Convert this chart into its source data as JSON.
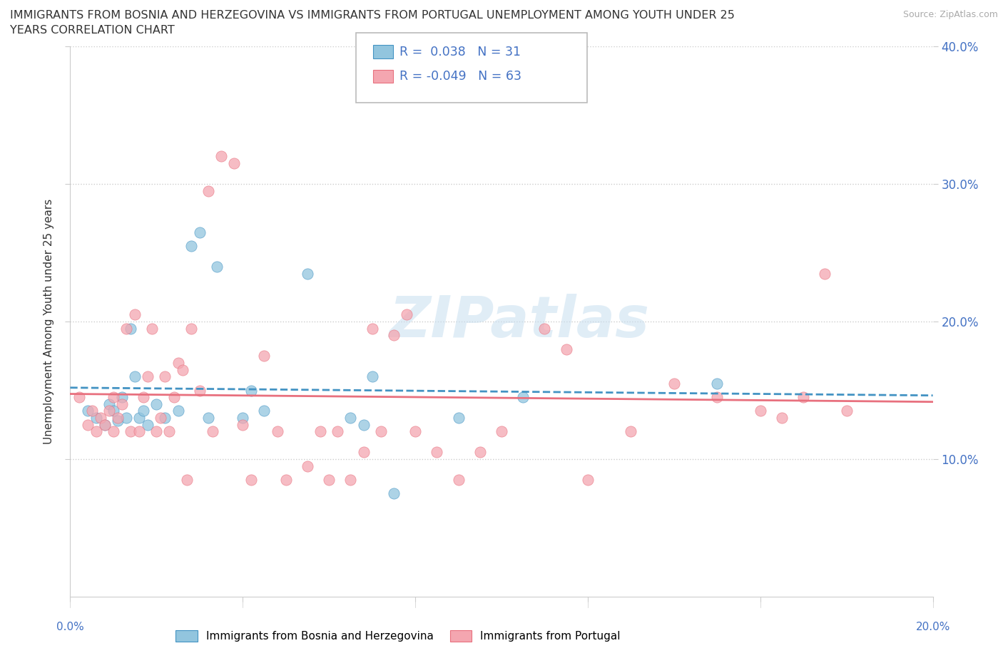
{
  "title_line1": "IMMIGRANTS FROM BOSNIA AND HERZEGOVINA VS IMMIGRANTS FROM PORTUGAL UNEMPLOYMENT AMONG YOUTH UNDER 25",
  "title_line2": "YEARS CORRELATION CHART",
  "source": "Source: ZipAtlas.com",
  "ylabel": "Unemployment Among Youth under 25 years",
  "watermark_text": "ZIPatlas",
  "bosnia_color": "#92c5de",
  "portugal_color": "#f4a6b0",
  "bosnia_line_color": "#4393c3",
  "portugal_line_color": "#e8707e",
  "bosnia_R": 0.038,
  "bosnia_N": 31,
  "portugal_R": -0.049,
  "portugal_N": 63,
  "bosnia_scatter": [
    [
      0.4,
      13.5
    ],
    [
      0.6,
      13.0
    ],
    [
      0.8,
      12.5
    ],
    [
      0.9,
      14.0
    ],
    [
      1.0,
      13.5
    ],
    [
      1.1,
      12.8
    ],
    [
      1.2,
      14.5
    ],
    [
      1.3,
      13.0
    ],
    [
      1.4,
      19.5
    ],
    [
      1.5,
      16.0
    ],
    [
      1.6,
      13.0
    ],
    [
      1.7,
      13.5
    ],
    [
      1.8,
      12.5
    ],
    [
      2.0,
      14.0
    ],
    [
      2.2,
      13.0
    ],
    [
      2.5,
      13.5
    ],
    [
      2.8,
      25.5
    ],
    [
      3.0,
      26.5
    ],
    [
      3.2,
      13.0
    ],
    [
      3.4,
      24.0
    ],
    [
      4.2,
      15.0
    ],
    [
      4.5,
      13.5
    ],
    [
      5.5,
      23.5
    ],
    [
      6.5,
      13.0
    ],
    [
      6.8,
      12.5
    ],
    [
      7.0,
      16.0
    ],
    [
      7.5,
      7.5
    ],
    [
      9.0,
      13.0
    ],
    [
      10.5,
      14.5
    ],
    [
      15.0,
      15.5
    ],
    [
      4.0,
      13.0
    ]
  ],
  "portugal_scatter": [
    [
      0.2,
      14.5
    ],
    [
      0.4,
      12.5
    ],
    [
      0.5,
      13.5
    ],
    [
      0.6,
      12.0
    ],
    [
      0.7,
      13.0
    ],
    [
      0.8,
      12.5
    ],
    [
      0.9,
      13.5
    ],
    [
      1.0,
      14.5
    ],
    [
      1.0,
      12.0
    ],
    [
      1.1,
      13.0
    ],
    [
      1.2,
      14.0
    ],
    [
      1.3,
      19.5
    ],
    [
      1.4,
      12.0
    ],
    [
      1.5,
      20.5
    ],
    [
      1.6,
      12.0
    ],
    [
      1.7,
      14.5
    ],
    [
      1.8,
      16.0
    ],
    [
      1.9,
      19.5
    ],
    [
      2.0,
      12.0
    ],
    [
      2.1,
      13.0
    ],
    [
      2.2,
      16.0
    ],
    [
      2.3,
      12.0
    ],
    [
      2.4,
      14.5
    ],
    [
      2.5,
      17.0
    ],
    [
      2.6,
      16.5
    ],
    [
      2.7,
      8.5
    ],
    [
      2.8,
      19.5
    ],
    [
      3.0,
      15.0
    ],
    [
      3.2,
      29.5
    ],
    [
      3.3,
      12.0
    ],
    [
      3.5,
      32.0
    ],
    [
      3.8,
      31.5
    ],
    [
      4.0,
      12.5
    ],
    [
      4.2,
      8.5
    ],
    [
      4.5,
      17.5
    ],
    [
      4.8,
      12.0
    ],
    [
      5.0,
      8.5
    ],
    [
      5.5,
      9.5
    ],
    [
      5.8,
      12.0
    ],
    [
      6.0,
      8.5
    ],
    [
      6.2,
      12.0
    ],
    [
      6.5,
      8.5
    ],
    [
      6.8,
      10.5
    ],
    [
      7.0,
      19.5
    ],
    [
      7.2,
      12.0
    ],
    [
      7.5,
      19.0
    ],
    [
      7.8,
      20.5
    ],
    [
      8.0,
      12.0
    ],
    [
      8.5,
      10.5
    ],
    [
      9.0,
      8.5
    ],
    [
      9.5,
      10.5
    ],
    [
      10.0,
      12.0
    ],
    [
      11.0,
      19.5
    ],
    [
      11.5,
      18.0
    ],
    [
      12.0,
      8.5
    ],
    [
      13.0,
      12.0
    ],
    [
      14.0,
      15.5
    ],
    [
      15.0,
      14.5
    ],
    [
      16.0,
      13.5
    ],
    [
      16.5,
      13.0
    ],
    [
      17.0,
      14.5
    ],
    [
      17.5,
      23.5
    ],
    [
      18.0,
      13.5
    ]
  ],
  "xlim": [
    0.0,
    20.0
  ],
  "ylim": [
    0.0,
    40.0
  ],
  "yticks": [
    10.0,
    20.0,
    30.0,
    40.0
  ],
  "ytick_labels": [
    "10.0%",
    "20.0%",
    "30.0%",
    "40.0%"
  ],
  "xtick_vals": [
    0.0,
    4.0,
    8.0,
    12.0,
    16.0,
    20.0
  ],
  "xtick_labels_show": [
    "0.0%",
    "20.0%"
  ],
  "grid_color": "#cccccc",
  "background_color": "#ffffff",
  "text_color": "#333333",
  "accent_color": "#4472c4",
  "source_color": "#aaaaaa"
}
